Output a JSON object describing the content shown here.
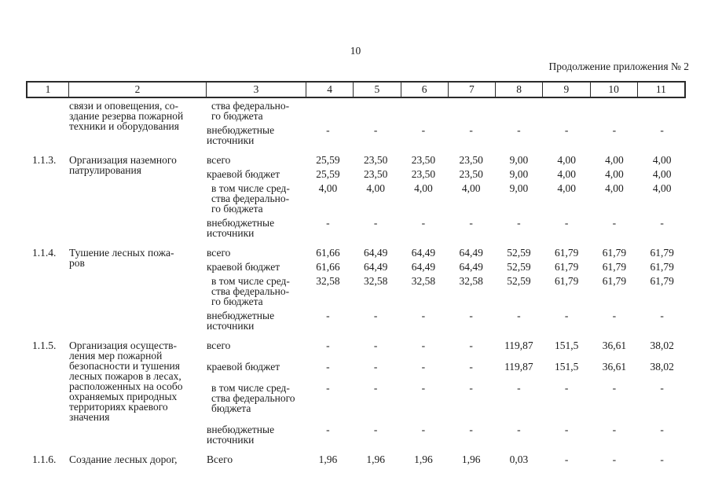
{
  "page": {
    "number": "10",
    "continuation_note": "Продолжение приложения № 2"
  },
  "table": {
    "header_cells": [
      "1",
      "2",
      "3",
      "4",
      "5",
      "6",
      "7",
      "8",
      "9",
      "10",
      "11"
    ],
    "rows": [
      {
        "num": "",
        "name_lines": [
          "связи и оповещения, со-",
          "здание резерва пожарной",
          "техники и оборудования"
        ],
        "budgets": [
          {
            "label_lines": [
              "ства федерально-",
              "го бюджета"
            ],
            "indent": true,
            "values": [
              "",
              "",
              "",
              "",
              "",
              "",
              "",
              ""
            ]
          },
          {
            "label_lines": [
              "внебюджетные",
              "источники"
            ],
            "indent": false,
            "values": [
              "-",
              "-",
              "-",
              "-",
              "-",
              "-",
              "-",
              "-"
            ]
          }
        ]
      },
      {
        "num": "1.1.3.",
        "name_lines": [
          "Организация наземного",
          "патрулирования"
        ],
        "budgets": [
          {
            "label_lines": [
              "всего"
            ],
            "indent": false,
            "values": [
              "25,59",
              "23,50",
              "23,50",
              "23,50",
              "9,00",
              "4,00",
              "4,00",
              "4,00"
            ]
          },
          {
            "label_lines": [
              "краевой бюджет"
            ],
            "indent": false,
            "values": [
              "25,59",
              "23,50",
              "23,50",
              "23,50",
              "9,00",
              "4,00",
              "4,00",
              "4,00"
            ]
          },
          {
            "label_lines": [
              "в том числе сред-",
              "ства федерально-",
              "го бюджета"
            ],
            "indent": true,
            "values": [
              "4,00",
              "4,00",
              "4,00",
              "4,00",
              "9,00",
              "4,00",
              "4,00",
              "4,00"
            ]
          },
          {
            "label_lines": [
              "внебюджетные",
              "источники"
            ],
            "indent": false,
            "values": [
              "-",
              "-",
              "-",
              "-",
              "-",
              "-",
              "-",
              "-"
            ]
          }
        ]
      },
      {
        "num": "1.1.4.",
        "name_lines": [
          "Тушение лесных пожа-",
          "ров"
        ],
        "budgets": [
          {
            "label_lines": [
              "всего"
            ],
            "indent": false,
            "values": [
              "61,66",
              "64,49",
              "64,49",
              "64,49",
              "52,59",
              "61,79",
              "61,79",
              "61,79"
            ]
          },
          {
            "label_lines": [
              "краевой бюджет"
            ],
            "indent": false,
            "values": [
              "61,66",
              "64,49",
              "64,49",
              "64,49",
              "52,59",
              "61,79",
              "61,79",
              "61,79"
            ]
          },
          {
            "label_lines": [
              "в том числе сред-",
              "ства федерально-",
              "го бюджета"
            ],
            "indent": true,
            "values": [
              "32,58",
              "32,58",
              "32,58",
              "32,58",
              "52,59",
              "61,79",
              "61,79",
              "61,79"
            ]
          },
          {
            "label_lines": [
              "внебюджетные",
              "источники"
            ],
            "indent": false,
            "values": [
              "-",
              "-",
              "-",
              "-",
              "-",
              "-",
              "-",
              "-"
            ]
          }
        ]
      },
      {
        "num": "1.1.5.",
        "name_lines": [
          "Организация осуществ-",
          "ления мер пожарной",
          "безопасности и тушения",
          "лесных пожаров в лесах,",
          "расположенных на особо",
          "охраняемых природных",
          "территориях краевого",
          "значения"
        ],
        "budgets": [
          {
            "label_lines": [
              "всего"
            ],
            "indent": false,
            "values": [
              "-",
              "-",
              "-",
              "-",
              "119,87",
              "151,5",
              "36,61",
              "38,02"
            ]
          },
          {
            "label_lines": [
              "краевой бюджет"
            ],
            "indent": false,
            "values": [
              "-",
              "-",
              "-",
              "-",
              "119,87",
              "151,5",
              "36,61",
              "38,02"
            ]
          },
          {
            "label_lines": [
              "в том числе сред-",
              "ства федерального",
              "бюджета"
            ],
            "indent": true,
            "values": [
              "-",
              "-",
              "-",
              "-",
              "-",
              "-",
              "-",
              "-"
            ]
          },
          {
            "label_lines": [
              "внебюджетные",
              "источники"
            ],
            "indent": false,
            "values": [
              "-",
              "-",
              "-",
              "-",
              "-",
              "-",
              "-",
              "-"
            ]
          }
        ]
      },
      {
        "num": "1.1.6.",
        "name_lines": [
          "Создание лесных дорог,"
        ],
        "budgets": [
          {
            "label_lines": [
              "Всего"
            ],
            "indent": false,
            "values": [
              "1,96",
              "1,96",
              "1,96",
              "1,96",
              "0,03",
              "-",
              "-",
              "-"
            ]
          }
        ]
      }
    ]
  }
}
